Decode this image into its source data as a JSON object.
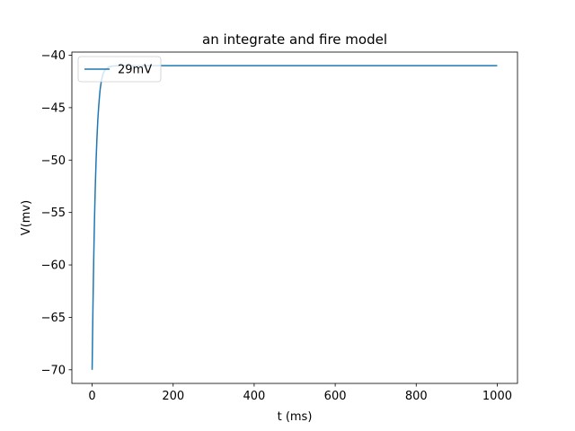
{
  "chart_data": {
    "type": "line",
    "title": "an integrate and fire model",
    "xlabel": "t (ms)",
    "ylabel": "V(mv)",
    "xlim": [
      -50,
      1050
    ],
    "ylim": [
      -71.3,
      -39.7
    ],
    "xticks": [
      0,
      200,
      400,
      600,
      800,
      1000
    ],
    "yticks": [
      -70,
      -65,
      -60,
      -55,
      -50,
      -45,
      -40
    ],
    "grid": false,
    "legend_position": "upper-left",
    "series": [
      {
        "name": "29mV",
        "color": "#1f77b4",
        "x": [
          0,
          1,
          2,
          3,
          4,
          5,
          6,
          7,
          8,
          10,
          12,
          14,
          16,
          18,
          20,
          23,
          26,
          30,
          35,
          40,
          45,
          50,
          60,
          70,
          80,
          100,
          150,
          200,
          300,
          400,
          500,
          600,
          700,
          800,
          900,
          1000
        ],
        "y": [
          -70,
          -66.9,
          -64.1,
          -61.6,
          -59.3,
          -57.3,
          -55.4,
          -53.8,
          -52.3,
          -49.8,
          -47.8,
          -46.2,
          -45.0,
          -44.0,
          -43.2,
          -42.4,
          -41.9,
          -41.5,
          -41.3,
          -41.15,
          -41.08,
          -41.04,
          -41.01,
          -41.0,
          -41.0,
          -41.0,
          -41.0,
          -41.0,
          -41.0,
          -41.0,
          -41.0,
          -41.0,
          -41.0,
          -41.0,
          -41.0,
          -41.0
        ]
      }
    ]
  }
}
